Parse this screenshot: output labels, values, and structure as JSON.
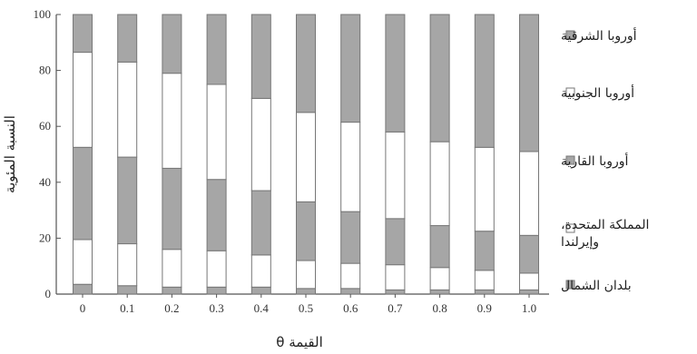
{
  "chart_data": {
    "type": "bar",
    "stacked": true,
    "xlabel": "القيمة θ",
    "ylabel": "النسبة المئوية",
    "ylim": [
      0,
      100
    ],
    "yticks": [
      0,
      20,
      40,
      60,
      80,
      100
    ],
    "categories": [
      "0",
      "0.1",
      "0.2",
      "0.3",
      "0.4",
      "0.5",
      "0.6",
      "0.7",
      "0.8",
      "0.9",
      "1.0"
    ],
    "legend_position": "right",
    "series": [
      {
        "name": "بلدان الشمال",
        "color": "#a6a6a6",
        "values": [
          3.5,
          3,
          2.5,
          2.5,
          2.5,
          2,
          2,
          1.5,
          1.5,
          1.5,
          1.5
        ]
      },
      {
        "name": "المملكة المتحدة، وإيرلندا",
        "color": "#ffffff",
        "values": [
          16,
          15,
          13.5,
          13,
          11.5,
          10,
          9,
          9,
          8,
          7,
          6
        ]
      },
      {
        "name": "أوروبا القارية",
        "color": "#a6a6a6",
        "values": [
          33,
          31,
          29,
          25.5,
          23,
          21,
          18.5,
          16.5,
          15,
          14,
          13.5
        ]
      },
      {
        "name": "أوروبا الجنوبية",
        "color": "#ffffff",
        "values": [
          34,
          34,
          34,
          34,
          33,
          32,
          32,
          31,
          30,
          30,
          30
        ]
      },
      {
        "name": "أوروبا الشرقية",
        "color": "#a6a6a6",
        "values": [
          13.5,
          17,
          21,
          25,
          30,
          35,
          38.5,
          42,
          45.5,
          47.5,
          49
        ]
      }
    ]
  }
}
